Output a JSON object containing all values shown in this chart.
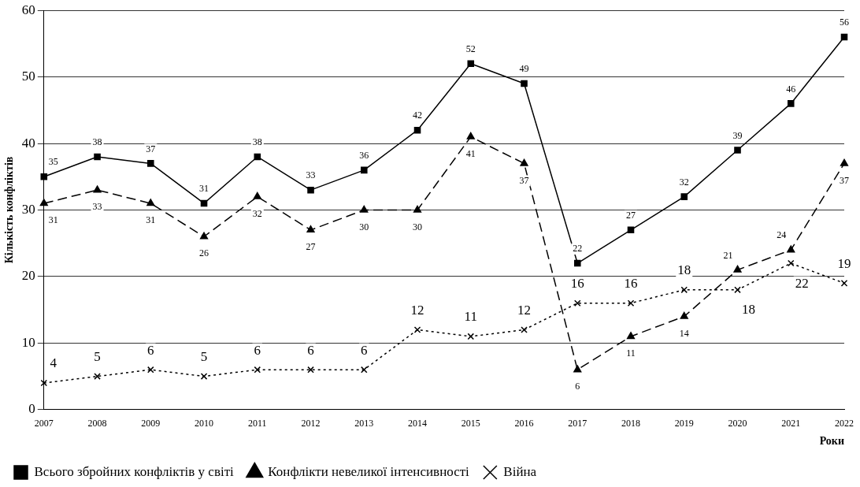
{
  "chart_data": {
    "type": "line",
    "xlabel": "Роки",
    "ylabel": "Кількість конфліктів",
    "categories": [
      "2007",
      "2008",
      "2009",
      "2010",
      "2011",
      "2012",
      "2013",
      "2014",
      "2015",
      "2016",
      "2017",
      "2018",
      "2019",
      "2020",
      "2021",
      "2022"
    ],
    "series": [
      {
        "name": "Всього збройних конфліктів у світі",
        "color": "#000000",
        "marker": "square",
        "line_style": "solid",
        "values": [
          35,
          38,
          37,
          31,
          38,
          33,
          36,
          42,
          52,
          49,
          22,
          27,
          32,
          39,
          46,
          56
        ]
      },
      {
        "name": "Конфлікти невеликої інтенсивності",
        "color": "#000000",
        "marker": "triangle",
        "line_style": "dashed",
        "values": [
          31,
          33,
          31,
          26,
          32,
          27,
          30,
          30,
          41,
          37,
          6,
          11,
          14,
          21,
          24,
          37
        ]
      },
      {
        "name": "Війна",
        "color": "#000000",
        "marker": "cross",
        "line_style": "dotted",
        "values": [
          4,
          5,
          6,
          5,
          6,
          6,
          6,
          12,
          11,
          12,
          16,
          16,
          18,
          18,
          22,
          19
        ]
      }
    ],
    "ylim": [
      0,
      60
    ],
    "yticks": [
      0,
      10,
      20,
      30,
      40,
      50,
      60
    ],
    "grid": "y",
    "legend": "bottom left",
    "data_labels": true
  }
}
